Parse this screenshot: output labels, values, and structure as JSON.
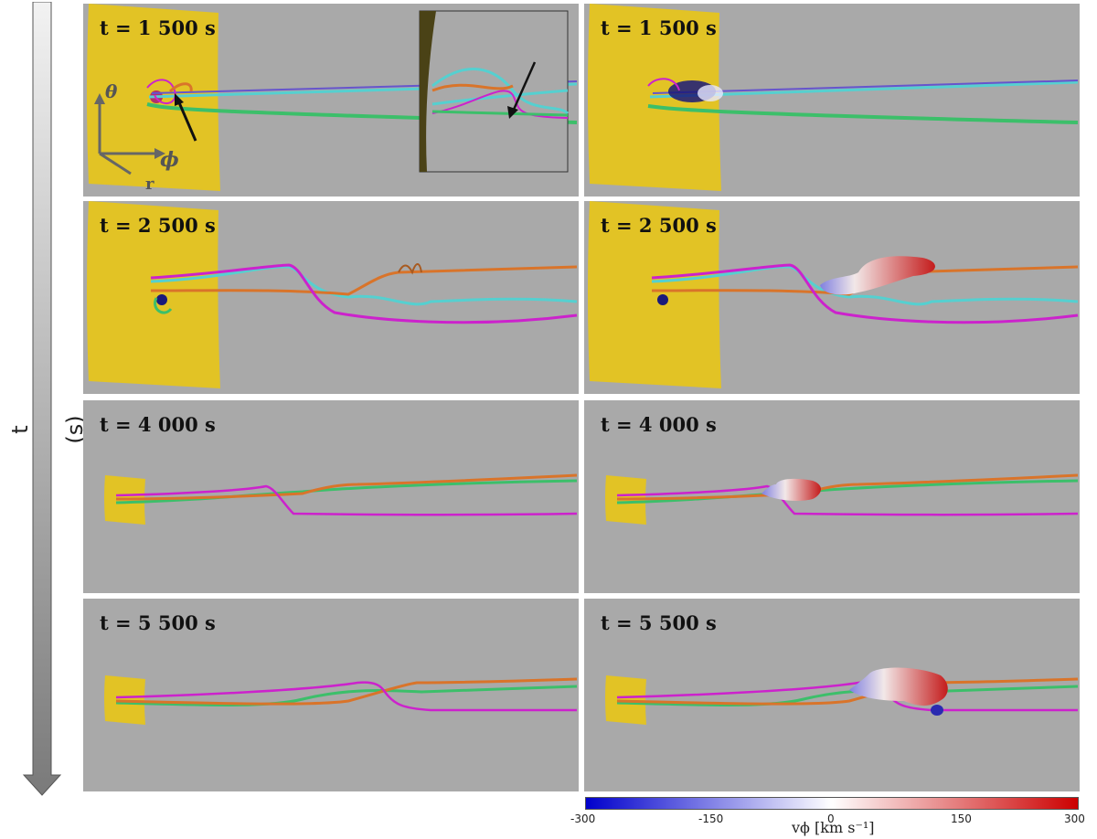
{
  "time_axis": {
    "label": "t (s)"
  },
  "rows": [
    {
      "time_label": "t = 1 500 s",
      "right_time_label": "t = 1 500 s"
    },
    {
      "time_label": "t = 2 500 s",
      "right_time_label": "t = 2 500 s"
    },
    {
      "time_label": "t = 4 000 s",
      "right_time_label": "t = 4 000 s"
    },
    {
      "time_label": "t = 5 500 s",
      "right_time_label": "t = 5 500 s"
    }
  ],
  "axes_glyph": {
    "theta": "θ",
    "phi": "ϕ",
    "r": "r"
  },
  "colorbar": {
    "ticks": [
      "-300",
      "-150",
      "0",
      "150",
      "300"
    ],
    "label": "vϕ [km s⁻¹]",
    "min_color": "#0000cc",
    "mid_color": "#ffffff",
    "max_color": "#cc0000"
  },
  "colors": {
    "panel_bg": "#a9a9a9",
    "surface": "#e2c325",
    "magenta": "#cc22cc",
    "orange": "#d9742a",
    "cyan": "#55d0d0",
    "green": "#3cbf6a"
  }
}
